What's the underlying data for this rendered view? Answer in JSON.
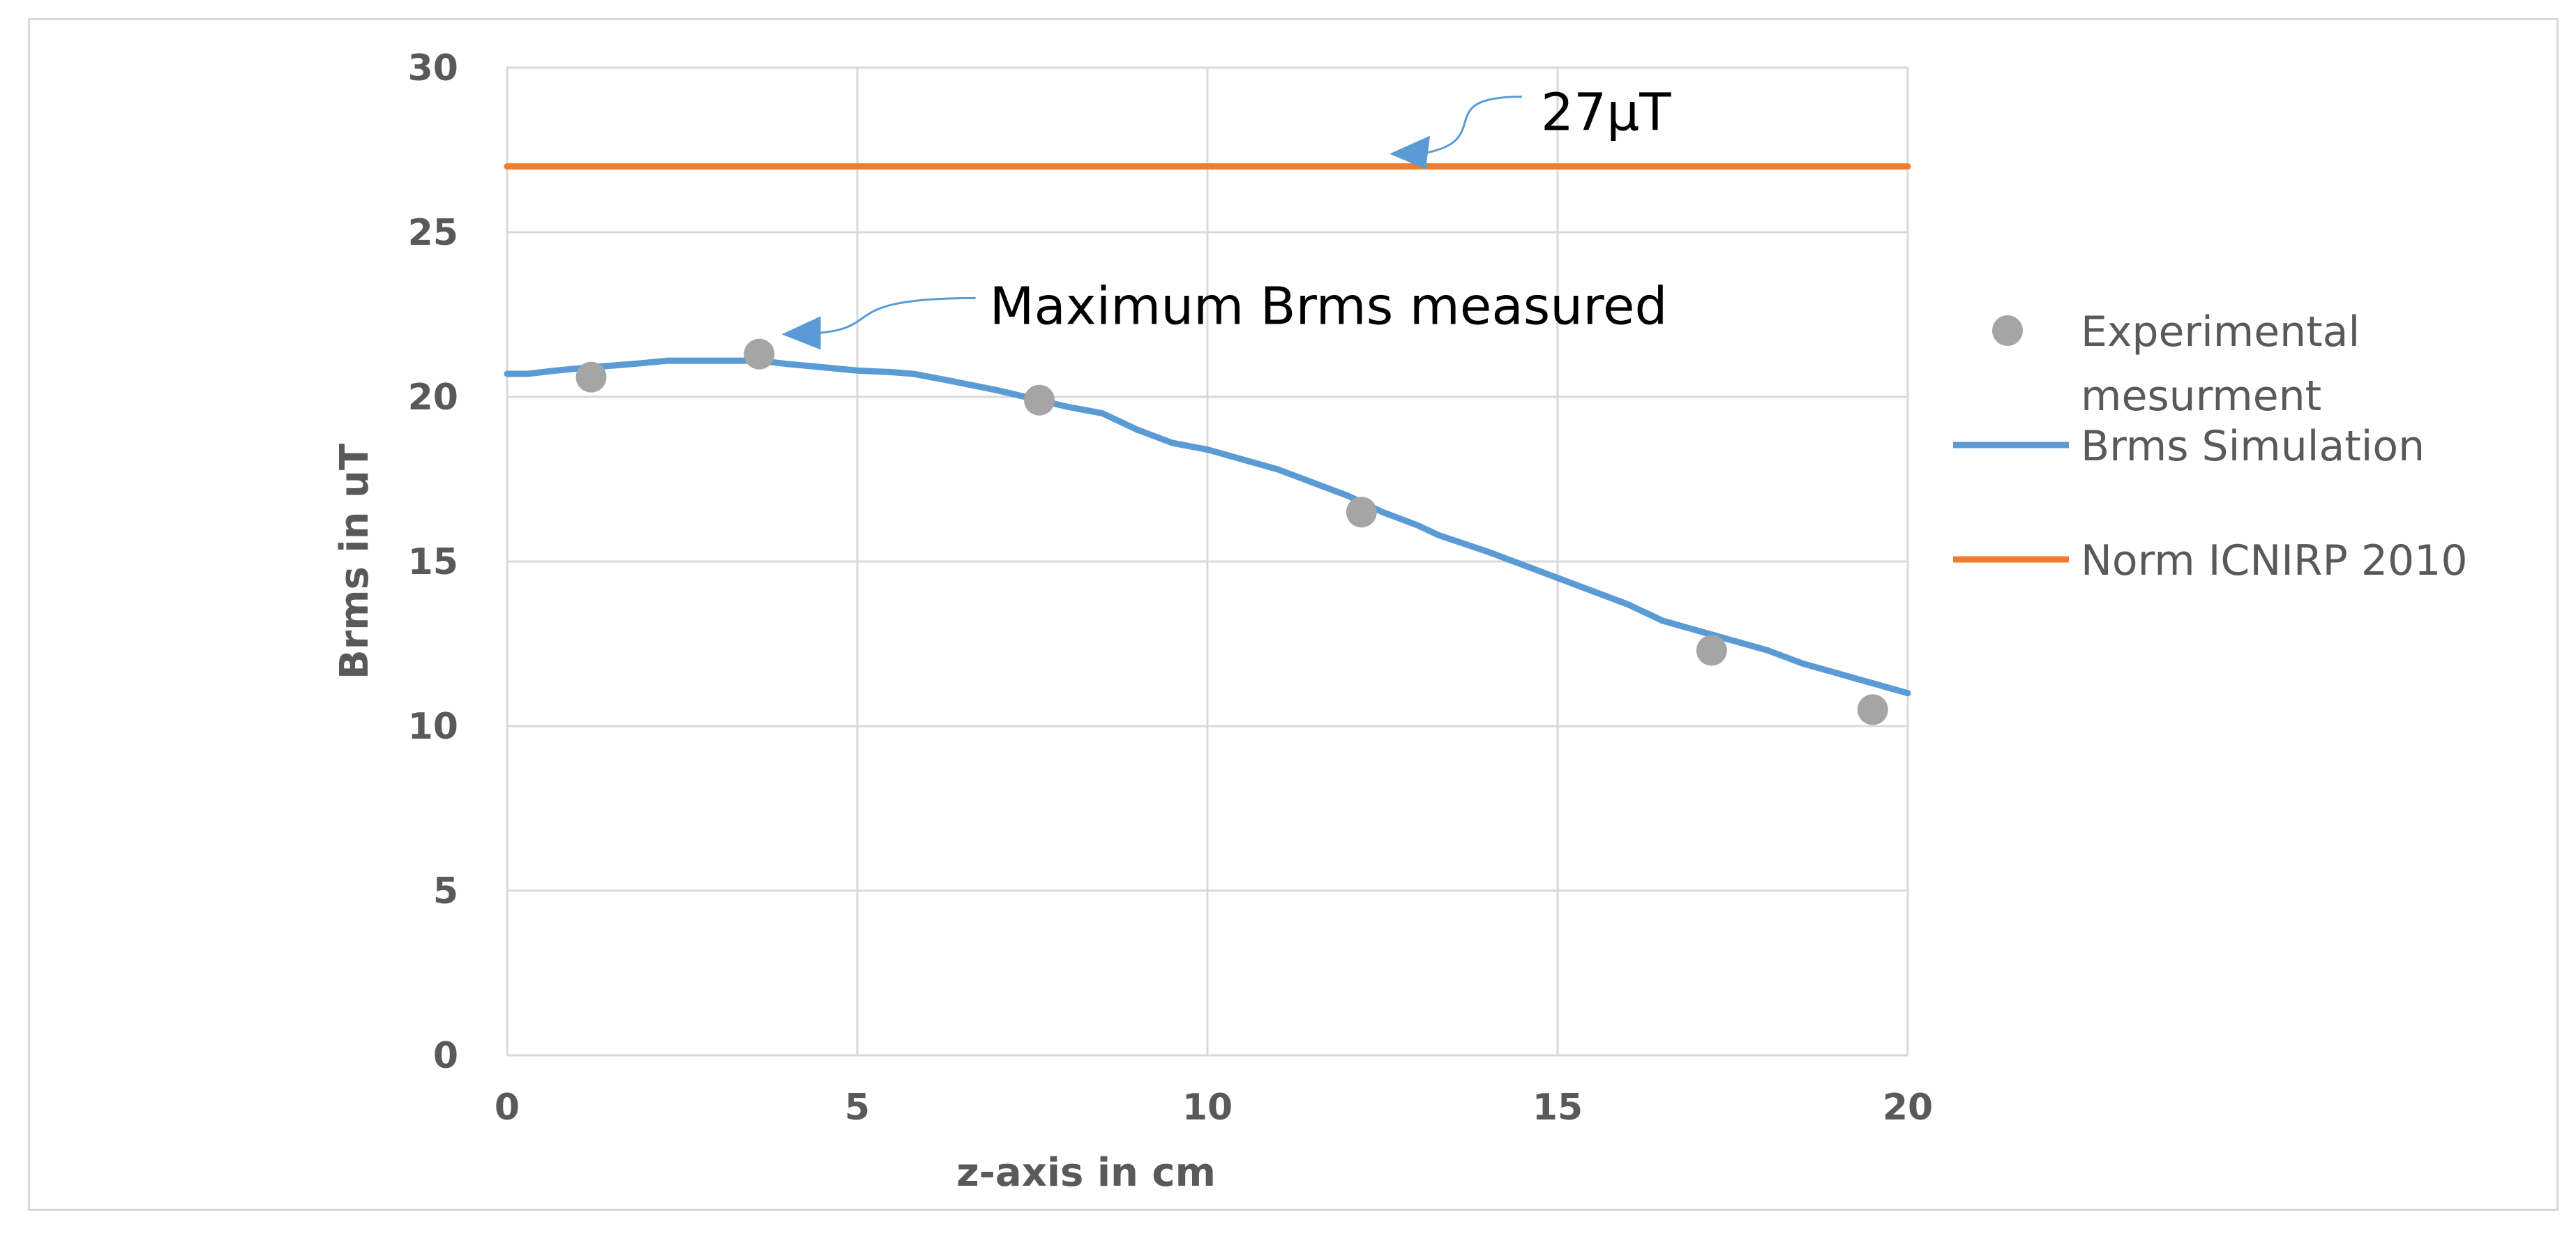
{
  "chart_data": {
    "type": "line",
    "xlabel": "z-axis in cm",
    "ylabel": "Brms in uT",
    "xlim": [
      0,
      20
    ],
    "ylim": [
      0,
      30
    ],
    "x_ticks": [
      0,
      5,
      10,
      15,
      20
    ],
    "y_ticks": [
      0,
      5,
      10,
      15,
      20,
      25,
      30
    ],
    "grid": true,
    "legend_position": "right",
    "series": [
      {
        "name": "Experimental mesurment",
        "kind": "scatter",
        "color": "#a5a5a5",
        "x": [
          1.2,
          3.6,
          7.6,
          12.2,
          17.2,
          19.5
        ],
        "y": [
          20.6,
          21.3,
          19.9,
          16.5,
          12.3,
          10.5
        ]
      },
      {
        "name": "Brms Simulation",
        "kind": "line",
        "color": "#5b9bd5",
        "x": [
          0,
          0.3,
          0.7,
          1.2,
          1.8,
          2.3,
          2.8,
          3.3,
          3.6,
          4.0,
          4.5,
          5.0,
          5.5,
          5.8,
          6.3,
          7.0,
          7.6,
          8.0,
          8.5,
          9.0,
          9.5,
          10.0,
          10.5,
          11.0,
          11.5,
          12.0,
          12.5,
          13.0,
          13.3,
          14.0,
          14.5,
          15.0,
          15.5,
          16.0,
          16.5,
          17.0,
          17.5,
          18.0,
          18.5,
          19.0,
          19.5,
          20.0
        ],
        "y": [
          20.7,
          20.7,
          20.8,
          20.9,
          21.0,
          21.1,
          21.1,
          21.1,
          21.1,
          21.0,
          20.9,
          20.8,
          20.75,
          20.7,
          20.5,
          20.2,
          19.9,
          19.7,
          19.5,
          19.0,
          18.6,
          18.4,
          18.1,
          17.8,
          17.4,
          17.0,
          16.5,
          16.1,
          15.8,
          15.3,
          14.9,
          14.5,
          14.1,
          13.7,
          13.2,
          12.9,
          12.6,
          12.3,
          11.9,
          11.6,
          11.3,
          11.0
        ]
      },
      {
        "name": "Norm ICNIRP 2010",
        "kind": "line",
        "color": "#ed7d31",
        "x": [
          0,
          20
        ],
        "y": [
          27,
          27
        ]
      }
    ],
    "legend": [
      {
        "lines": [
          "Experimental",
          "mesurment"
        ],
        "marker": "dot",
        "color": "#a5a5a5"
      },
      {
        "lines": [
          "Brms Simulation"
        ],
        "marker": "line",
        "color": "#5b9bd5"
      },
      {
        "lines": [
          "Norm ICNIRP 2010"
        ],
        "marker": "line",
        "color": "#ed7d31"
      }
    ],
    "annotations": [
      {
        "text": "27µT",
        "target_x": 12.6,
        "target_y": 27.0
      },
      {
        "text": "Maximum Brms measured",
        "target_x": 4.0,
        "target_y": 21.9
      }
    ]
  }
}
